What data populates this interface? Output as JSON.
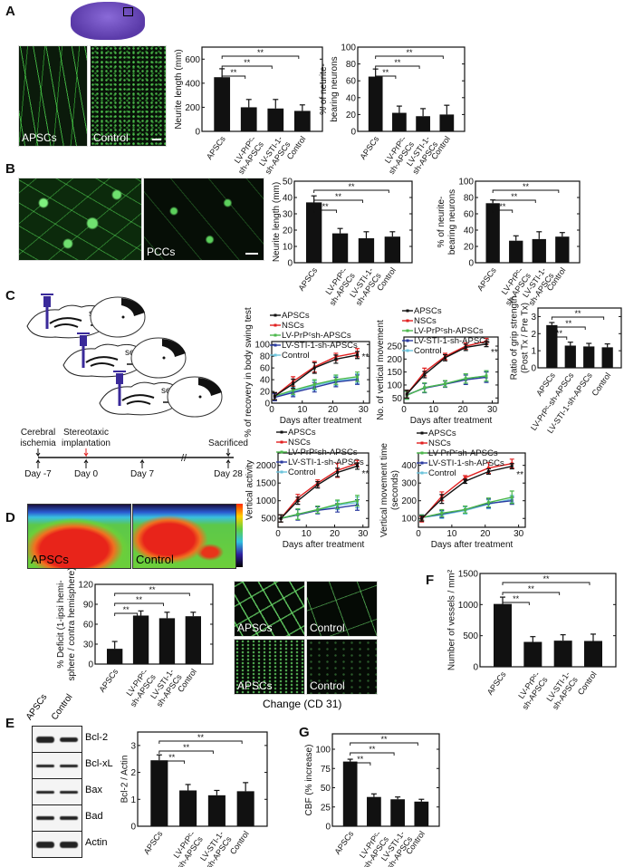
{
  "panels": {
    "A": "A",
    "B": "B",
    "C": "C",
    "D": "D",
    "E": "E",
    "F": "F",
    "G": "G"
  },
  "images": {
    "a_apscs": "APSCs",
    "a_control": "Control",
    "b_pccs": "PCCs",
    "d_apscs": "APSCs",
    "d_control": "Control",
    "f_apscs_1": "APSCs",
    "f_control_1": "Control",
    "f_apscs_2": "APSCs",
    "f_control_2": "Control",
    "f_caption": "Change (CD 31)"
  },
  "diagram": {
    "section_labels": [
      "section",
      "section",
      "section"
    ],
    "timeline": {
      "events": [
        "Cerebral ischemia",
        "Stereotaxic implantation",
        "Sacrificed"
      ],
      "days": [
        "Day -7",
        "Day 0",
        "Day 7",
        "Day 28"
      ]
    },
    "syringe_color": "#3a2a9a",
    "implant_marker_color": "#e02020"
  },
  "western_blot": {
    "lanes": [
      "APSCs",
      "Control"
    ],
    "proteins": [
      "Bcl-2",
      "Bcl-xL",
      "Bax",
      "Bad",
      "Actin"
    ]
  },
  "chart_data": [
    {
      "id": "a1",
      "type": "bar",
      "panel": "A",
      "ylabel": "Neurite length (mm)",
      "ylim": [
        0,
        700
      ],
      "yticks": [
        0,
        200,
        400,
        600
      ],
      "categories": [
        "APSCs",
        "LV-PrPᶜ-|sh-APSCs",
        "LV-STI-1-|sh-APSCs",
        "Control"
      ],
      "values": [
        450,
        200,
        190,
        170
      ],
      "errors": [
        70,
        65,
        75,
        50
      ],
      "significance": [
        "**",
        "**",
        "**"
      ]
    },
    {
      "id": "a2",
      "type": "bar",
      "panel": "A",
      "ylabel": "% of neurite-|bearing neurons",
      "ylim": [
        0,
        100
      ],
      "yticks": [
        0,
        20,
        40,
        60,
        80,
        100
      ],
      "categories": [
        "APSCs",
        "LV-PrPᶜ-|sh-APSCs",
        "LV-STI-1-|sh-APSCs",
        "Control"
      ],
      "values": [
        65,
        22,
        18,
        20
      ],
      "errors": [
        9,
        8,
        9,
        11
      ],
      "significance": [
        "**",
        "**",
        "**"
      ]
    },
    {
      "id": "b1",
      "type": "bar",
      "panel": "B",
      "ylabel": "Neurite length (mm)",
      "ylim": [
        0,
        50
      ],
      "yticks": [
        0,
        10,
        20,
        30,
        40,
        50
      ],
      "categories": [
        "APSCs",
        "LV-PrPᶜ-|sh-APSCs",
        "LV-STI-1-|sh-APSCs",
        "Control"
      ],
      "values": [
        37,
        18,
        15,
        16
      ],
      "errors": [
        4,
        3,
        4,
        3
      ],
      "significance": [
        "**",
        "**",
        "**"
      ]
    },
    {
      "id": "b2",
      "type": "bar",
      "panel": "B",
      "ylabel": "% of neurite-|bearing neurons",
      "ylim": [
        0,
        100
      ],
      "yticks": [
        0,
        20,
        40,
        60,
        80,
        100
      ],
      "categories": [
        "APSCs",
        "LV-PrPᶜ-|sh-APSCs",
        "LV-STI-1-|sh-APSCs",
        "Control"
      ],
      "values": [
        73,
        27,
        29,
        32
      ],
      "errors": [
        4,
        6,
        9,
        5
      ],
      "significance": [
        "**",
        "**",
        "**"
      ]
    },
    {
      "id": "c_grip",
      "type": "bar",
      "panel": "C",
      "ylabel": "Ratio of grip strength|(Post Tx / Pre Tx)",
      "ylim": [
        0,
        3.5
      ],
      "yticks": [
        0,
        1,
        2,
        3
      ],
      "categories": [
        "APSCs",
        "LV-PrPᶜ-sh-APSCs",
        "LV-STI-1-sh-APSCs",
        "Control"
      ],
      "values": [
        2.5,
        1.3,
        1.25,
        1.2
      ],
      "errors": [
        0.15,
        0.2,
        0.18,
        0.2
      ],
      "significance": [
        "**",
        "**",
        "**"
      ]
    },
    {
      "id": "c_l1",
      "type": "line",
      "panel": "C",
      "xlabel": "Days after treatment",
      "ylabel": "% of recovery in body swing test",
      "xlim": [
        0,
        32
      ],
      "xticks": [
        0,
        10,
        20,
        30
      ],
      "ylim": [
        0,
        105
      ],
      "yticks": [
        0,
        20,
        40,
        60,
        80,
        100
      ],
      "x": [
        1,
        7,
        14,
        21,
        28
      ],
      "annotation": "**",
      "series": [
        {
          "name": "APSCs",
          "color": "#111111",
          "values": [
            12,
            33,
            60,
            75,
            82
          ],
          "errors": [
            6,
            8,
            9,
            7,
            6
          ]
        },
        {
          "name": "NSCs",
          "color": "#e02020",
          "values": [
            12,
            37,
            62,
            79,
            86
          ],
          "errors": [
            6,
            8,
            9,
            6,
            7
          ]
        },
        {
          "name": "LV-PrPᶜsh-APSCs",
          "color": "#4cb84c",
          "values": [
            12,
            22,
            32,
            40,
            45
          ],
          "errors": [
            6,
            7,
            8,
            8,
            8
          ]
        },
        {
          "name": "LV-STI-1-sh-APSCs",
          "color": "#2a3aa0",
          "values": [
            10,
            18,
            27,
            36,
            40
          ],
          "errors": [
            6,
            7,
            8,
            8,
            8
          ]
        },
        {
          "name": "Control",
          "color": "#6cc4dc",
          "values": [
            12,
            20,
            30,
            38,
            42
          ],
          "errors": [
            6,
            7,
            8,
            8,
            8
          ]
        }
      ]
    },
    {
      "id": "c_l2",
      "type": "line",
      "panel": "C",
      "xlabel": "Days after treatment",
      "ylabel": "No. of vertical movement",
      "xlim": [
        0,
        32
      ],
      "xticks": [
        0,
        10,
        20,
        30
      ],
      "ylim": [
        30,
        285
      ],
      "yticks": [
        50,
        100,
        150,
        200,
        250
      ],
      "x": [
        1,
        7,
        14,
        21,
        28
      ],
      "annotation": "**",
      "series": [
        {
          "name": "APSCs",
          "color": "#111111",
          "values": [
            65,
            140,
            205,
            245,
            258
          ],
          "errors": [
            15,
            12,
            12,
            12,
            10
          ]
        },
        {
          "name": "NSCs",
          "color": "#e02020",
          "values": [
            65,
            150,
            210,
            250,
            268
          ],
          "errors": [
            15,
            15,
            12,
            12,
            12
          ]
        },
        {
          "name": "LV-PrPᶜsh-APSCs",
          "color": "#4cb84c",
          "values": [
            60,
            90,
            105,
            125,
            135
          ],
          "errors": [
            15,
            18,
            12,
            18,
            20
          ]
        },
        {
          "name": "LV-STI-1-sh-APSCs",
          "color": "#2a3aa0",
          "values": [
            62,
            88,
            103,
            120,
            130
          ],
          "errors": [
            15,
            18,
            12,
            18,
            20
          ]
        },
        {
          "name": "Control",
          "color": "#6cc4dc",
          "values": [
            60,
            90,
            105,
            125,
            135
          ],
          "errors": [
            15,
            18,
            12,
            18,
            20
          ]
        }
      ]
    },
    {
      "id": "c_l3",
      "type": "line",
      "panel": "C",
      "xlabel": "Days after treatment",
      "ylabel": "Vertical activity",
      "xlim": [
        0,
        32
      ],
      "xticks": [
        0,
        10,
        20,
        30
      ],
      "ylim": [
        250,
        2350
      ],
      "yticks": [
        500,
        1000,
        1500,
        2000
      ],
      "x": [
        1,
        7,
        14,
        21,
        28
      ],
      "annotation": "**",
      "series": [
        {
          "name": "APSCs",
          "color": "#111111",
          "values": [
            500,
            1000,
            1450,
            1800,
            1980
          ],
          "errors": [
            100,
            100,
            90,
            120,
            90
          ]
        },
        {
          "name": "NSCs",
          "color": "#e02020",
          "values": [
            500,
            1080,
            1500,
            1860,
            2050
          ],
          "errors": [
            100,
            100,
            90,
            200,
            90
          ]
        },
        {
          "name": "LV-PrPᶜsh-APSCs",
          "color": "#4cb84c",
          "values": [
            500,
            620,
            750,
            900,
            1000
          ],
          "errors": [
            100,
            150,
            100,
            120,
            150
          ]
        },
        {
          "name": "LV-STI-1-sh-APSCs",
          "color": "#2a3aa0",
          "values": [
            500,
            600,
            730,
            800,
            880
          ],
          "errors": [
            100,
            150,
            100,
            120,
            150
          ]
        },
        {
          "name": "Control",
          "color": "#6cc4dc",
          "values": [
            500,
            620,
            740,
            870,
            950
          ],
          "errors": [
            100,
            150,
            100,
            120,
            150
          ]
        }
      ]
    },
    {
      "id": "c_l4",
      "type": "line",
      "panel": "C",
      "xlabel": "Days after treatment",
      "ylabel": "Vertical movement time|(seconds)",
      "xlim": [
        0,
        32
      ],
      "xticks": [
        0,
        10,
        20,
        30
      ],
      "ylim": [
        50,
        470
      ],
      "yticks": [
        100,
        200,
        300,
        400
      ],
      "x": [
        1,
        7,
        14,
        21,
        28
      ],
      "annotation": "**",
      "series": [
        {
          "name": "APSCs",
          "color": "#111111",
          "values": [
            100,
            210,
            310,
            365,
            395
          ],
          "errors": [
            15,
            25,
            12,
            15,
            15
          ]
        },
        {
          "name": "NSCs",
          "color": "#e02020",
          "values": [
            95,
            225,
            330,
            385,
            410
          ],
          "errors": [
            15,
            25,
            12,
            30,
            25
          ]
        },
        {
          "name": "LV-PrPᶜsh-APSCs",
          "color": "#4cb84c",
          "values": [
            105,
            130,
            150,
            190,
            220
          ],
          "errors": [
            15,
            20,
            20,
            25,
            35
          ]
        },
        {
          "name": "LV-STI-1-sh-APSCs",
          "color": "#2a3aa0",
          "values": [
            105,
            125,
            150,
            185,
            200
          ],
          "errors": [
            15,
            20,
            20,
            25,
            20
          ]
        },
        {
          "name": "Control",
          "color": "#6cc4dc",
          "values": [
            105,
            120,
            145,
            180,
            210
          ],
          "errors": [
            15,
            20,
            20,
            25,
            20
          ]
        }
      ]
    },
    {
      "id": "d",
      "type": "bar",
      "panel": "D",
      "ylabel": "% Deficit (1-ipsi hemi-|sphere / contra hemisphere)",
      "ylim": [
        0,
        120
      ],
      "yticks": [
        0,
        30,
        60,
        90,
        120
      ],
      "categories": [
        "APSCs",
        "LV-PrPᶜ-|sh-APSCs",
        "LV-STI-1-|sh-APSCs",
        "Control"
      ],
      "values": [
        23,
        73,
        69,
        72
      ],
      "errors": [
        11,
        7,
        9,
        6
      ],
      "significance": [
        "**",
        "**",
        "**"
      ]
    },
    {
      "id": "f",
      "type": "bar",
      "panel": "F",
      "ylabel": "Number of vessels / mm²",
      "ylim": [
        0,
        1500
      ],
      "yticks": [
        0,
        500,
        1000,
        1500
      ],
      "categories": [
        "APSCs",
        "LV-PrPᶜ-|sh-APSCs",
        "LV-STI-1-|sh-APSCs",
        "Control"
      ],
      "values": [
        1010,
        400,
        420,
        415
      ],
      "errors": [
        110,
        85,
        95,
        110
      ],
      "significance": [
        "**",
        "**",
        "**"
      ]
    },
    {
      "id": "e",
      "type": "bar",
      "panel": "E",
      "ylabel": "Bcl-2 / Actin",
      "ylim": [
        0,
        3.5
      ],
      "yticks": [
        0,
        1,
        2,
        3
      ],
      "categories": [
        "APSCs",
        "LV-PrPᶜ-|sh-APSCs",
        "LV-STI-1-|sh-APSCs",
        "Control"
      ],
      "values": [
        2.45,
        1.33,
        1.15,
        1.3
      ],
      "errors": [
        0.2,
        0.22,
        0.18,
        0.32
      ],
      "significance": [
        "**",
        "**",
        "**"
      ]
    },
    {
      "id": "g",
      "type": "bar",
      "panel": "G",
      "ylabel": "CBF (% increase)",
      "ylim": [
        0,
        120
      ],
      "yticks": [
        0,
        25,
        50,
        75,
        100
      ],
      "categories": [
        "APSCs",
        "LV-PrPᶜ-|sh-APSCs",
        "LV-STI-1-|sh-APSCs",
        "Control"
      ],
      "values": [
        84,
        38,
        35,
        32
      ],
      "errors": [
        3,
        4,
        3,
        3
      ],
      "significance": [
        "**",
        "**",
        "**"
      ]
    }
  ]
}
